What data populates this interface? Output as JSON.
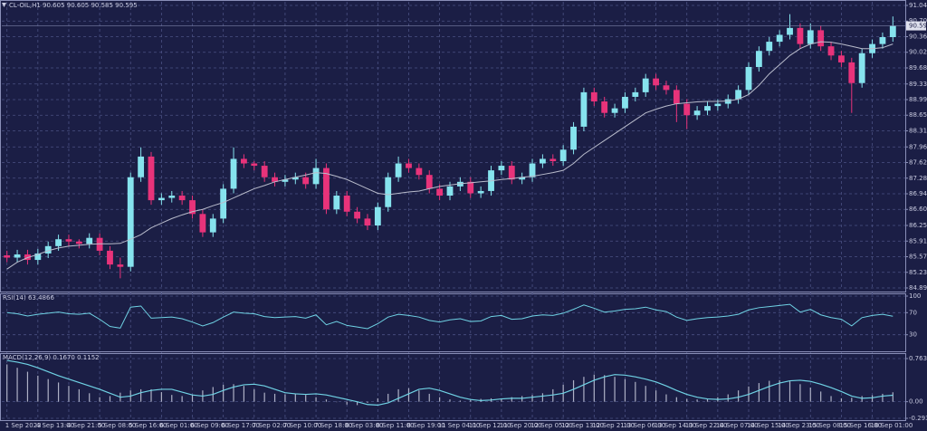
{
  "chart_data": [
    {
      "type": "candlestick",
      "title": "CL-OIL,H1  90.605 90.605 90.585 90.595",
      "up_color": "#86e3ee",
      "down_color": "#e8337a",
      "ma_color": "#b9bccc",
      "grid": true,
      "ylim": [
        84.89,
        91.04
      ],
      "yticks": [
        {
          "value": 91.04,
          "label": "91.040"
        },
        {
          "value": 90.7,
          "label": "90.700"
        },
        {
          "value": 90.36,
          "label": "90.360"
        },
        {
          "value": 90.02,
          "label": "90.020"
        },
        {
          "value": 89.68,
          "label": "89.680"
        },
        {
          "value": 89.33,
          "label": "89.330"
        },
        {
          "value": 88.99,
          "label": "88.990"
        },
        {
          "value": 88.65,
          "label": "88.650"
        },
        {
          "value": 88.31,
          "label": "88.310"
        },
        {
          "value": 87.96,
          "label": "87.960"
        },
        {
          "value": 87.62,
          "label": "87.620"
        },
        {
          "value": 87.28,
          "label": "87.280"
        },
        {
          "value": 86.94,
          "label": "86.940"
        },
        {
          "value": 86.6,
          "label": "86.600"
        },
        {
          "value": 86.25,
          "label": "86.250"
        },
        {
          "value": 85.91,
          "label": "85.910"
        },
        {
          "value": 85.57,
          "label": "85.570"
        },
        {
          "value": 85.23,
          "label": "85.230"
        },
        {
          "value": 84.89,
          "label": "84.890"
        }
      ],
      "last_price": 90.595,
      "categories": [
        "1 Sep 2023",
        null,
        null,
        "4 Sep 13:00",
        null,
        null,
        "4 Sep 21:00",
        null,
        null,
        "5 Sep 08:00",
        null,
        null,
        "5 Sep 16:00",
        null,
        null,
        "6 Sep 01:00",
        null,
        null,
        "6 Sep 09:00",
        null,
        null,
        "6 Sep 17:00",
        null,
        null,
        "7 Sep 02:00",
        null,
        null,
        "7 Sep 10:00",
        null,
        null,
        "7 Sep 18:00",
        null,
        null,
        "8 Sep 03:00",
        null,
        null,
        "8 Sep 11:00",
        null,
        null,
        "8 Sep 19:00",
        null,
        null,
        "11 Sep 04:00",
        null,
        null,
        "11 Sep 12:00",
        null,
        null,
        "11 Sep 20:00",
        null,
        null,
        "12 Sep 05:00",
        null,
        null,
        "12 Sep 13:00",
        null,
        null,
        "12 Sep 21:00",
        null,
        null,
        "13 Sep 06:00",
        null,
        null,
        "13 Sep 14:00",
        null,
        null,
        "13 Sep 22:00",
        null,
        null,
        "14 Sep 07:00",
        null,
        null,
        "14 Sep 15:00",
        null,
        null,
        "14 Sep 23:00",
        null,
        null,
        "15 Sep 08:00",
        null,
        null,
        "15 Sep 16:00",
        null,
        null,
        "18 Sep 01:00",
        null,
        null
      ],
      "ohlc": [
        [
          85.6,
          85.7,
          85.45,
          85.55
        ],
        [
          85.55,
          85.72,
          85.45,
          85.62
        ],
        [
          85.62,
          85.72,
          85.4,
          85.5
        ],
        [
          85.5,
          85.74,
          85.4,
          85.64
        ],
        [
          85.64,
          85.9,
          85.54,
          85.8
        ],
        [
          85.8,
          86.05,
          85.7,
          85.95
        ],
        [
          85.95,
          86.05,
          85.8,
          85.9
        ],
        [
          85.9,
          85.95,
          85.75,
          85.85
        ],
        [
          85.85,
          86.08,
          85.75,
          85.98
        ],
        [
          85.98,
          86.08,
          85.6,
          85.7
        ],
        [
          85.7,
          85.8,
          85.3,
          85.4
        ],
        [
          85.4,
          85.55,
          85.1,
          85.35
        ],
        [
          85.35,
          87.4,
          85.25,
          87.3
        ],
        [
          87.3,
          87.95,
          87.2,
          87.75
        ],
        [
          87.75,
          87.85,
          86.7,
          86.8
        ],
        [
          86.8,
          86.95,
          86.7,
          86.85
        ],
        [
          86.85,
          87.0,
          86.75,
          86.9
        ],
        [
          86.9,
          87.0,
          86.7,
          86.8
        ],
        [
          86.8,
          86.9,
          86.4,
          86.5
        ],
        [
          86.5,
          86.6,
          86.0,
          86.1
        ],
        [
          86.1,
          86.5,
          86.0,
          86.4
        ],
        [
          86.4,
          87.15,
          86.3,
          87.05
        ],
        [
          87.05,
          87.95,
          86.95,
          87.7
        ],
        [
          87.7,
          87.8,
          87.5,
          87.6
        ],
        [
          87.6,
          87.65,
          87.45,
          87.55
        ],
        [
          87.55,
          87.65,
          87.2,
          87.3
        ],
        [
          87.3,
          87.4,
          87.1,
          87.2
        ],
        [
          87.2,
          87.35,
          87.1,
          87.25
        ],
        [
          87.25,
          87.4,
          87.15,
          87.3
        ],
        [
          87.3,
          87.4,
          87.05,
          87.15
        ],
        [
          87.15,
          87.7,
          87.05,
          87.5
        ],
        [
          87.5,
          87.6,
          86.5,
          86.6
        ],
        [
          86.6,
          87.0,
          86.5,
          86.9
        ],
        [
          86.9,
          87.0,
          86.45,
          86.55
        ],
        [
          86.55,
          86.65,
          86.3,
          86.4
        ],
        [
          86.4,
          86.5,
          86.15,
          86.25
        ],
        [
          86.25,
          86.75,
          86.15,
          86.65
        ],
        [
          86.65,
          87.4,
          86.55,
          87.3
        ],
        [
          87.3,
          87.75,
          87.2,
          87.6
        ],
        [
          87.6,
          87.7,
          87.4,
          87.5
        ],
        [
          87.5,
          87.6,
          87.25,
          87.35
        ],
        [
          87.35,
          87.45,
          86.95,
          87.05
        ],
        [
          87.05,
          87.15,
          86.8,
          86.9
        ],
        [
          86.9,
          87.2,
          86.8,
          87.1
        ],
        [
          87.1,
          87.3,
          87.0,
          87.2
        ],
        [
          87.2,
          87.3,
          86.85,
          86.95
        ],
        [
          86.95,
          87.1,
          86.85,
          87.0
        ],
        [
          87.0,
          87.55,
          86.9,
          87.45
        ],
        [
          87.45,
          87.65,
          87.35,
          87.55
        ],
        [
          87.55,
          87.65,
          87.15,
          87.25
        ],
        [
          87.25,
          87.4,
          87.15,
          87.3
        ],
        [
          87.3,
          87.7,
          87.2,
          87.6
        ],
        [
          87.6,
          87.8,
          87.5,
          87.7
        ],
        [
          87.7,
          87.8,
          87.55,
          87.65
        ],
        [
          87.65,
          88.0,
          87.55,
          87.9
        ],
        [
          87.9,
          88.5,
          87.8,
          88.4
        ],
        [
          88.4,
          89.25,
          88.3,
          89.15
        ],
        [
          89.15,
          89.25,
          88.85,
          88.95
        ],
        [
          88.95,
          89.05,
          88.6,
          88.7
        ],
        [
          88.7,
          88.9,
          88.6,
          88.8
        ],
        [
          88.8,
          89.15,
          88.7,
          89.05
        ],
        [
          89.05,
          89.25,
          88.95,
          89.15
        ],
        [
          89.15,
          89.55,
          89.05,
          89.45
        ],
        [
          89.45,
          89.55,
          89.2,
          89.3
        ],
        [
          89.3,
          89.4,
          89.1,
          89.2
        ],
        [
          89.2,
          89.3,
          88.5,
          88.9
        ],
        [
          88.9,
          89.0,
          88.35,
          88.65
        ],
        [
          88.65,
          88.85,
          88.55,
          88.75
        ],
        [
          88.75,
          88.95,
          88.65,
          88.85
        ],
        [
          88.85,
          89.0,
          88.75,
          88.9
        ],
        [
          88.9,
          89.1,
          88.8,
          89.0
        ],
        [
          89.0,
          89.3,
          88.9,
          89.2
        ],
        [
          89.2,
          89.8,
          89.1,
          89.7
        ],
        [
          89.7,
          90.15,
          89.6,
          90.05
        ],
        [
          90.05,
          90.35,
          89.95,
          90.25
        ],
        [
          90.25,
          90.5,
          90.15,
          90.4
        ],
        [
          90.4,
          90.85,
          90.3,
          90.55
        ],
        [
          90.55,
          90.65,
          90.1,
          90.2
        ],
        [
          90.2,
          90.65,
          90.1,
          90.5
        ],
        [
          90.5,
          90.6,
          90.05,
          90.15
        ],
        [
          90.15,
          90.25,
          89.85,
          89.95
        ],
        [
          89.95,
          90.05,
          89.7,
          89.8
        ],
        [
          89.8,
          89.9,
          88.7,
          89.35
        ],
        [
          89.35,
          90.1,
          89.25,
          90.0
        ],
        [
          90.0,
          90.3,
          89.9,
          90.2
        ],
        [
          90.2,
          90.45,
          90.1,
          90.35
        ],
        [
          90.35,
          90.8,
          90.25,
          90.6
        ]
      ],
      "ma": [
        85.3,
        85.45,
        85.55,
        85.62,
        85.7,
        85.76,
        85.8,
        85.82,
        85.84,
        85.85,
        85.85,
        85.86,
        85.95,
        86.05,
        86.2,
        86.3,
        86.4,
        86.48,
        86.55,
        86.6,
        86.68,
        86.75,
        86.85,
        86.95,
        87.05,
        87.12,
        87.2,
        87.25,
        87.3,
        87.35,
        87.4,
        87.38,
        87.32,
        87.25,
        87.15,
        87.05,
        86.95,
        86.92,
        86.95,
        86.98,
        87.0,
        87.05,
        87.1,
        87.13,
        87.16,
        87.18,
        87.2,
        87.22,
        87.25,
        87.27,
        87.3,
        87.32,
        87.36,
        87.4,
        87.45,
        87.6,
        87.8,
        87.95,
        88.1,
        88.25,
        88.4,
        88.55,
        88.7,
        88.78,
        88.85,
        88.9,
        88.92,
        88.94,
        88.95,
        88.95,
        88.96,
        89.0,
        89.1,
        89.3,
        89.55,
        89.75,
        89.95,
        90.1,
        90.2,
        90.25,
        90.24,
        90.2,
        90.15,
        90.1,
        90.1,
        90.12,
        90.2
      ]
    },
    {
      "type": "line",
      "title": "RSI(14) 63.4866",
      "color": "#6fd2e4",
      "grid": true,
      "ylim": [
        0,
        100
      ],
      "yticks": [
        100,
        70,
        30
      ],
      "values": [
        70,
        68,
        64,
        67,
        69,
        71,
        68,
        67,
        69,
        58,
        45,
        42,
        80,
        82,
        60,
        61,
        62,
        59,
        53,
        46,
        52,
        62,
        71,
        69,
        68,
        63,
        61,
        62,
        63,
        60,
        66,
        48,
        54,
        47,
        44,
        41,
        50,
        62,
        67,
        65,
        62,
        56,
        53,
        57,
        59,
        54,
        55,
        63,
        65,
        58,
        59,
        64,
        66,
        65,
        69,
        76,
        84,
        78,
        71,
        73,
        76,
        77,
        80,
        75,
        72,
        62,
        56,
        59,
        61,
        62,
        64,
        67,
        75,
        79,
        81,
        83,
        85,
        71,
        76,
        66,
        61,
        58,
        46,
        61,
        65,
        67,
        63.49
      ]
    },
    {
      "type": "macd",
      "title": "MACD(12,26,9) 0.1670 0.1152",
      "color": "#6fd2e4",
      "hist_color": "#aeb1c6",
      "grid": true,
      "ylim": [
        -0.2937,
        0.7632
      ],
      "yticks": [
        0.7632,
        {
          "value": 0,
          "label": "0.00"
        },
        -0.2937
      ],
      "values": [
        0.66,
        0.6,
        0.53,
        0.46,
        0.4,
        0.34,
        0.28,
        0.22,
        0.15,
        0.08,
        0.1,
        0.16,
        0.2,
        0.22,
        0.22,
        0.17,
        0.12,
        0.1,
        0.13,
        0.2,
        0.26,
        0.3,
        0.31,
        0.28,
        0.22,
        0.16,
        0.14,
        0.13,
        0.14,
        0.12,
        0.08,
        0.04,
        0.0,
        -0.05,
        -0.06,
        -0.02,
        0.06,
        0.14,
        0.22,
        0.24,
        0.2,
        0.14,
        0.08,
        0.04,
        0.02,
        0.03,
        0.05,
        0.06,
        0.06,
        0.08,
        0.1,
        0.12,
        0.15,
        0.22,
        0.3,
        0.38,
        0.44,
        0.48,
        0.47,
        0.44,
        0.4,
        0.35,
        0.28,
        0.2,
        0.13,
        0.08,
        0.05,
        0.04,
        0.05,
        0.08,
        0.13,
        0.2,
        0.27,
        0.33,
        0.37,
        0.38,
        0.36,
        0.31,
        0.25,
        0.18,
        0.1,
        0.06,
        0.07,
        0.1,
        0.1152,
        0.14,
        0.167
      ],
      "signal": [
        0.73,
        0.7,
        0.66,
        0.6,
        0.53,
        0.46,
        0.4,
        0.34,
        0.28,
        0.22,
        0.15,
        0.08,
        0.1,
        0.16,
        0.2,
        0.22,
        0.22,
        0.17,
        0.12,
        0.1,
        0.13,
        0.2,
        0.26,
        0.3,
        0.31,
        0.28,
        0.22,
        0.16,
        0.14,
        0.13,
        0.14,
        0.12,
        0.08,
        0.04,
        0.0,
        -0.05,
        -0.06,
        -0.02,
        0.06,
        0.14,
        0.22,
        0.24,
        0.2,
        0.14,
        0.08,
        0.04,
        0.02,
        0.03,
        0.05,
        0.06,
        0.06,
        0.08,
        0.1,
        0.12,
        0.15,
        0.22,
        0.3,
        0.38,
        0.44,
        0.48,
        0.47,
        0.44,
        0.4,
        0.35,
        0.28,
        0.2,
        0.13,
        0.08,
        0.05,
        0.04,
        0.05,
        0.08,
        0.13,
        0.2,
        0.27,
        0.33,
        0.37,
        0.38,
        0.36,
        0.31,
        0.25,
        0.18,
        0.1,
        0.06,
        0.07,
        0.1,
        0.1152
      ]
    }
  ]
}
